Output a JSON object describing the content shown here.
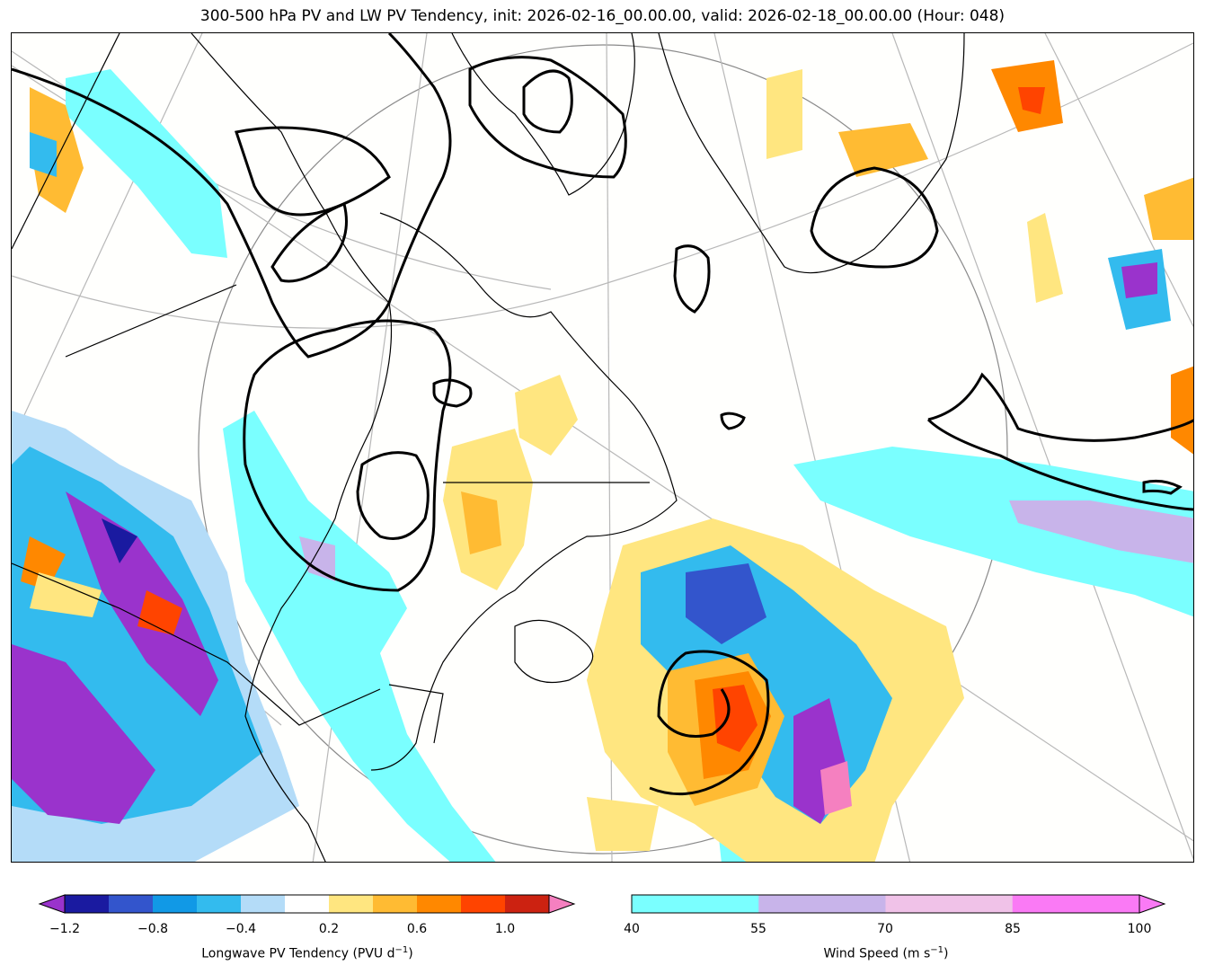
{
  "title": "300-500 hPa PV and LW PV Tendency, init: 2026-02-16_00.00.00, valid: 2026-02-18_00.00.00 (Hour: 048)",
  "colorbars": {
    "pv_tendency": {
      "label": "Longwave PV Tendency (PVU d",
      "label_sup": "−1",
      "label_end": ")",
      "colors": [
        "#9a33cc",
        "#1a1aa0",
        "#3355cc",
        "#1199e6",
        "#33bbee",
        "#b4dcf8",
        "#ffffff",
        "#ffe680",
        "#ffbb33",
        "#ff8800",
        "#ff4400",
        "#cc2211",
        "#f580c0"
      ],
      "ticks": [
        "−1.2",
        "−0.8",
        "−0.4",
        "0.2",
        "0.6",
        "1.0"
      ]
    },
    "wind_speed": {
      "label": "Wind Speed (m s",
      "label_sup": "−1",
      "label_end": ")",
      "colors": [
        "#7affff",
        "#c8b4ea",
        "#f0c2e8",
        "#fa7af5"
      ],
      "ticks": [
        "40",
        "55",
        "70",
        "85",
        "100"
      ]
    }
  }
}
